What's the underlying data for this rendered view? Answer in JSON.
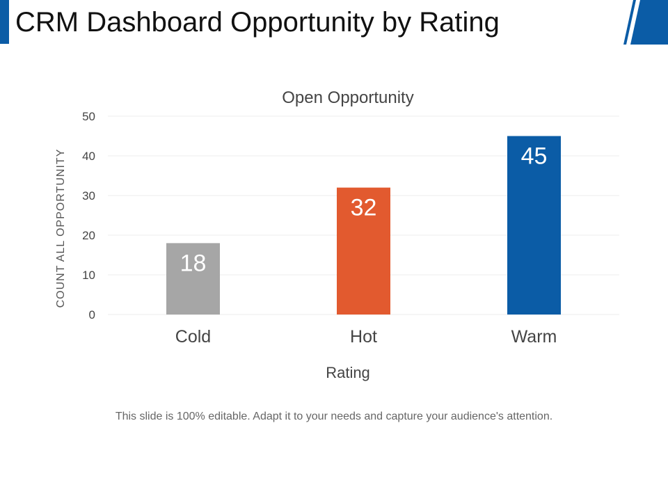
{
  "slide": {
    "title": "CRM Dashboard Opportunity by Rating",
    "footer_note": "This slide is 100% editable. Adapt it to your needs and capture your audience's attention."
  },
  "colors": {
    "accent": "#0b5ca6",
    "cold": "#a6a6a6",
    "hot": "#e25a2f",
    "warm": "#0b5ca6",
    "grid": "#eeeeee"
  },
  "chart_data": {
    "type": "bar",
    "title": "Open Opportunity",
    "xlabel": "Rating",
    "ylabel": "COUNT ALL OPPORTUNITY",
    "categories": [
      "Cold",
      "Hot",
      "Warm"
    ],
    "values": [
      18,
      32,
      45
    ],
    "data_labels": [
      "18",
      "32",
      "45"
    ],
    "bar_colors": [
      "#a6a6a6",
      "#e25a2f",
      "#0b5ca6"
    ],
    "ylim": [
      0,
      50
    ],
    "yticks": [
      0,
      10,
      20,
      30,
      40,
      50
    ],
    "grid": true,
    "legend": "none"
  }
}
